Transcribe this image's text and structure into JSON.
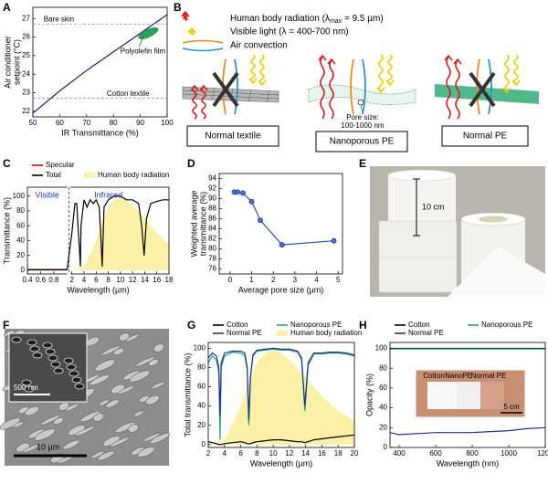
{
  "panel_labels": [
    "A",
    "B",
    "C",
    "D",
    "E",
    "F",
    "G",
    "H"
  ],
  "diagram_b": {
    "legend": [
      {
        "prefix": "Human body radiation (λ",
        "sub": "max",
        "suffix": " = 9.5 µm)"
      },
      {
        "prefix": "Visible light (λ = 400-700 nm)"
      },
      {
        "prefix": "Air convection"
      }
    ],
    "materials": [
      "Normal textile",
      "Nanoporous PE",
      "Normal PE"
    ],
    "pore_note": [
      "Pore size:",
      "100-1000 nm"
    ]
  },
  "photo_e": {
    "scale": "10 cm"
  },
  "photo_f": {
    "inset_scale": "500 nm",
    "scale": "10 µm"
  },
  "photo_h": {
    "labels": [
      "Cotton",
      "NanoPE",
      "Normal PE"
    ],
    "scale": "5 cm"
  },
  "chart_data": [
    {
      "type": "line",
      "xlabel": "IR Transmittance (%)",
      "ylabel": [
        "Air conditioner",
        "setpoint (°C)"
      ],
      "x": [
        50,
        60,
        70,
        80,
        90,
        100
      ],
      "series": [
        {
          "color": "#1a1a8c",
          "values": [
            21.9,
            23.1,
            24.2,
            25.2,
            26.2,
            27.2
          ]
        }
      ],
      "xlim": [
        50,
        100
      ],
      "xticks": [
        50,
        60,
        70,
        80,
        90,
        100
      ],
      "ylim": [
        21.7,
        27.6
      ],
      "yticks": [
        22,
        23,
        24,
        25,
        26,
        27
      ],
      "reference_lines": [
        {
          "label": "Bare skin",
          "value": 26.7
        },
        {
          "label": "Cotton textile",
          "value": 22.7
        }
      ],
      "marker": {
        "label": "Polyolefin film",
        "x": 93,
        "y": 26.2,
        "color": "#2e9e5b"
      }
    },
    {
      "type": "line",
      "xlabel": "Wavelength (µm)",
      "ylabel": [
        "Transmittance (%)"
      ],
      "annotations": [
        "Visible",
        "Infrared"
      ],
      "x": [
        0.4,
        0.6,
        0.8,
        1.0,
        2,
        2.5,
        2.8,
        3.0,
        3.3,
        3.4,
        3.5,
        4,
        4.5,
        5,
        5.5,
        6,
        6.5,
        6.8,
        7,
        7.3,
        8,
        9,
        10,
        11,
        12,
        13,
        13.5,
        13.9,
        14.3,
        15,
        16,
        17,
        18
      ],
      "series": [
        {
          "name": "Specular",
          "color": "#d40000",
          "x": [
            0.4,
            0.6,
            0.8,
            1.0
          ],
          "values": [
            1,
            1,
            1,
            1
          ]
        },
        {
          "name": "Total",
          "color": "#000000",
          "values": [
            0.5,
            0.5,
            0.5,
            0.5,
            50,
            90,
            90,
            60,
            20,
            5,
            60,
            95,
            85,
            95,
            90,
            95,
            85,
            40,
            5,
            85,
            95,
            100,
            100,
            95,
            95,
            90,
            60,
            20,
            70,
            90,
            93,
            95,
            95
          ]
        },
        {
          "name": "Human body radiation",
          "color": "#fbf1a6",
          "area": true,
          "x": [
            2,
            4,
            6,
            7,
            8,
            9,
            10,
            11,
            12,
            14,
            16,
            18
          ],
          "values": [
            0,
            5,
            40,
            65,
            85,
            95,
            98,
            95,
            88,
            70,
            50,
            35
          ]
        }
      ],
      "xlim": [
        0.4,
        18
      ],
      "xbreak": [
        1,
        1.8
      ],
      "xticks": [
        0.4,
        0.6,
        0.8,
        2,
        4,
        6,
        8,
        10,
        12,
        14,
        16,
        18
      ],
      "ylim": [
        -5,
        112
      ],
      "yticks": [
        0,
        20,
        40,
        60,
        80,
        100
      ]
    },
    {
      "type": "line",
      "xlabel": "Average pore size (µm)",
      "ylabel": [
        "Weighted average",
        "transmittance (%)"
      ],
      "markers": true,
      "x": [
        0.2,
        0.35,
        0.6,
        1.0,
        1.4,
        2.4,
        4.8
      ],
      "series": [
        {
          "color": "#2d4ea8",
          "values": [
            91.3,
            91.3,
            91.1,
            89.4,
            85.7,
            80.8,
            81.6
          ]
        }
      ],
      "xlim": [
        -0.5,
        5.2
      ],
      "xticks": [
        0,
        1,
        2,
        3,
        4,
        5
      ],
      "ylim": [
        75,
        95
      ],
      "yticks": [
        76,
        78,
        80,
        82,
        84,
        86,
        88,
        90,
        92,
        94
      ]
    },
    {
      "type": "line",
      "xlabel": "Wavelength (µm)",
      "ylabel": [
        "Total transmittance (%)"
      ],
      "x": [
        2,
        2.5,
        3,
        3.3,
        3.45,
        3.6,
        4,
        5,
        6,
        6.5,
        6.8,
        7,
        7.2,
        7.5,
        8,
        9,
        10,
        11,
        12,
        13,
        13.5,
        13.9,
        14.3,
        15,
        16,
        17,
        18,
        19,
        20
      ],
      "series": [
        {
          "name": "Cotton",
          "color": "#000000",
          "values": [
            3,
            2,
            1,
            0,
            0,
            0,
            1,
            2,
            3,
            2,
            1,
            1,
            1,
            2,
            3,
            4,
            5,
            5,
            4,
            3,
            3,
            2,
            3,
            5,
            6,
            7,
            8,
            9,
            10
          ]
        },
        {
          "name": "Nanoporous PE",
          "color": "#2aa36b",
          "values": [
            85,
            92,
            88,
            75,
            5,
            80,
            92,
            96,
            95,
            92,
            78,
            20,
            68,
            92,
            97,
            98,
            99,
            98,
            98,
            96,
            88,
            35,
            82,
            94,
            94,
            95,
            95,
            94,
            92
          ]
        },
        {
          "name": "Normal PE",
          "color": "#1f2f9a",
          "values": [
            90,
            95,
            92,
            80,
            30,
            85,
            95,
            97,
            97,
            95,
            80,
            25,
            70,
            93,
            98,
            99,
            100,
            99,
            99,
            97,
            90,
            40,
            85,
            95,
            95,
            96,
            96,
            95,
            93
          ]
        },
        {
          "name": "Human body radiation",
          "color": "#fbf1a6",
          "area": true,
          "x": [
            2,
            4,
            6,
            7,
            8,
            9,
            10,
            11,
            12,
            14,
            16,
            18,
            20
          ],
          "values": [
            0,
            5,
            40,
            65,
            85,
            95,
            98,
            95,
            88,
            70,
            50,
            35,
            25
          ]
        }
      ],
      "xlim": [
        2,
        20
      ],
      "xticks": [
        2,
        4,
        6,
        8,
        10,
        12,
        14,
        16,
        18,
        20
      ],
      "ylim": [
        -3,
        106
      ],
      "yticks": [
        0,
        20,
        40,
        60,
        80,
        100
      ]
    },
    {
      "type": "line",
      "xlabel": "Wavelength (nm)",
      "ylabel": [
        "Opacity (%)"
      ],
      "x": [
        350,
        400,
        500,
        600,
        700,
        800,
        900,
        1000,
        1100,
        1200
      ],
      "series": [
        {
          "name": "Cotton",
          "color": "#000000",
          "values": [
            100,
            100,
            100,
            100,
            100,
            100,
            100,
            100,
            100,
            100
          ]
        },
        {
          "name": "Nanoporous PE",
          "color": "#2aa36b",
          "values": [
            99.5,
            99.5,
            99.5,
            99.5,
            99.5,
            99.5,
            99.5,
            99.5,
            99.5,
            99.5
          ]
        },
        {
          "name": "Normal PE",
          "color": "#1f2f9a",
          "values": [
            15,
            13,
            14,
            15,
            15,
            15,
            16,
            17,
            19,
            20
          ]
        }
      ],
      "xlim": [
        350,
        1200
      ],
      "xticks": [
        400,
        600,
        800,
        1000,
        1200
      ],
      "ylim": [
        0,
        106
      ],
      "yticks": [
        0,
        20,
        40,
        60,
        80,
        100
      ]
    }
  ]
}
